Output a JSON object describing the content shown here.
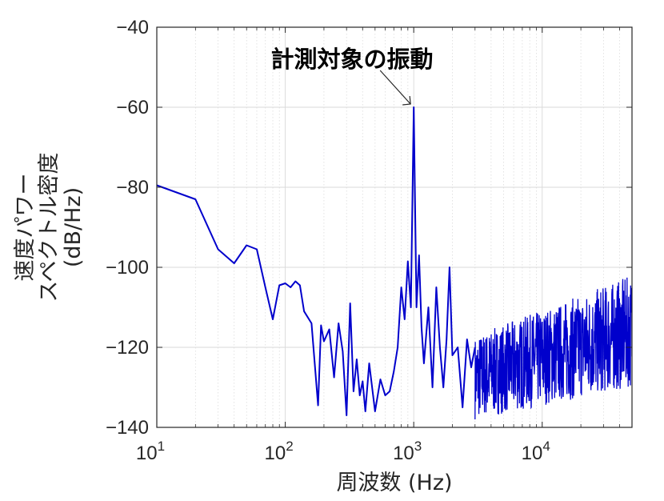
{
  "chart_data": {
    "type": "line",
    "title": "",
    "xlabel": "周波数 (Hz)",
    "ylabel_lines": [
      "速度パワー",
      "スペクトル密度",
      "(dB/Hz)"
    ],
    "x_scale": "log",
    "xlim": [
      10,
      50000
    ],
    "ylim": [
      -140,
      -40
    ],
    "x_ticks": [
      10,
      100,
      1000,
      10000
    ],
    "x_tick_labels": [
      {
        "base": "10",
        "exp": "1"
      },
      {
        "base": "10",
        "exp": "2"
      },
      {
        "base": "10",
        "exp": "3"
      },
      {
        "base": "10",
        "exp": "4"
      }
    ],
    "y_ticks": [
      -140,
      -120,
      -100,
      -80,
      -60,
      -40
    ],
    "y_tick_labels": [
      "−140",
      "−120",
      "−100",
      "−80",
      "−60",
      "−40"
    ],
    "grid": true,
    "line_color": "#0000cc",
    "annotation": {
      "text": "計測対象の振動",
      "x": 1000,
      "y": -60
    },
    "series": [
      {
        "x": [
          10,
          20,
          30,
          40,
          50,
          60,
          70,
          80,
          90,
          100,
          110,
          120,
          130,
          140,
          160,
          180,
          190,
          200,
          220,
          240,
          260,
          280,
          300,
          320,
          340,
          360,
          380,
          400,
          420,
          450,
          500,
          550,
          600,
          650,
          700,
          750,
          800,
          850,
          900,
          950,
          1000,
          1050,
          1100,
          1150,
          1200,
          1300,
          1400,
          1500,
          1600,
          1700,
          1800,
          1900,
          2000,
          2200,
          2400,
          2600,
          2800,
          3000
        ],
        "y": [
          -79.5,
          -83,
          -95.5,
          -99,
          -94.5,
          -95.5,
          -105,
          -113,
          -104.5,
          -104,
          -105,
          -103.5,
          -104.5,
          -111,
          -114,
          -134.5,
          -114.5,
          -118.5,
          -115.5,
          -127.5,
          -114,
          -121,
          -137,
          -109,
          -131,
          -123,
          -132,
          -128.5,
          -136,
          -124,
          -136,
          -128,
          -132,
          -131,
          -126,
          -120,
          -105,
          -113,
          -98.5,
          -110,
          -60,
          -110,
          -97,
          -115,
          -124,
          -110,
          -130,
          -105,
          -120,
          -130,
          -118,
          -100,
          -122,
          -120,
          -135,
          -118,
          -125,
          -120
        ]
      }
    ]
  }
}
